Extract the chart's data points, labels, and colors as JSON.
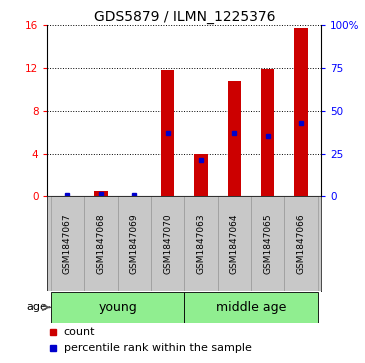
{
  "title": "GDS5879 / ILMN_1225376",
  "samples": [
    "GSM1847067",
    "GSM1847068",
    "GSM1847069",
    "GSM1847070",
    "GSM1847063",
    "GSM1847064",
    "GSM1847065",
    "GSM1847066"
  ],
  "counts": [
    0.05,
    0.5,
    0.05,
    11.8,
    4.0,
    10.8,
    11.9,
    15.8
  ],
  "percentiles": [
    0.5,
    1.5,
    0.5,
    37.0,
    21.0,
    37.0,
    35.0,
    43.0
  ],
  "groups": [
    "young",
    "young",
    "young",
    "young",
    "middle age",
    "middle age",
    "middle age",
    "middle age"
  ],
  "bar_color": "#CC0000",
  "dot_color": "#0000CC",
  "left_ylim": [
    0,
    16
  ],
  "right_ylim": [
    0,
    100
  ],
  "left_yticks": [
    0,
    4,
    8,
    12,
    16
  ],
  "right_yticks": [
    0,
    25,
    50,
    75,
    100
  ],
  "left_yticklabels": [
    "0",
    "4",
    "8",
    "12",
    "16"
  ],
  "right_yticklabels": [
    "0",
    "25",
    "50",
    "75",
    "100%"
  ],
  "bar_width": 0.4,
  "bg_color": "#ffffff",
  "gray_color": "#C8C8C8",
  "green_color": "#90EE90",
  "title_fontsize": 10,
  "tick_label_fontsize": 7.5,
  "sample_fontsize": 6.5,
  "group_label_fontsize": 9,
  "legend_fontsize": 8
}
